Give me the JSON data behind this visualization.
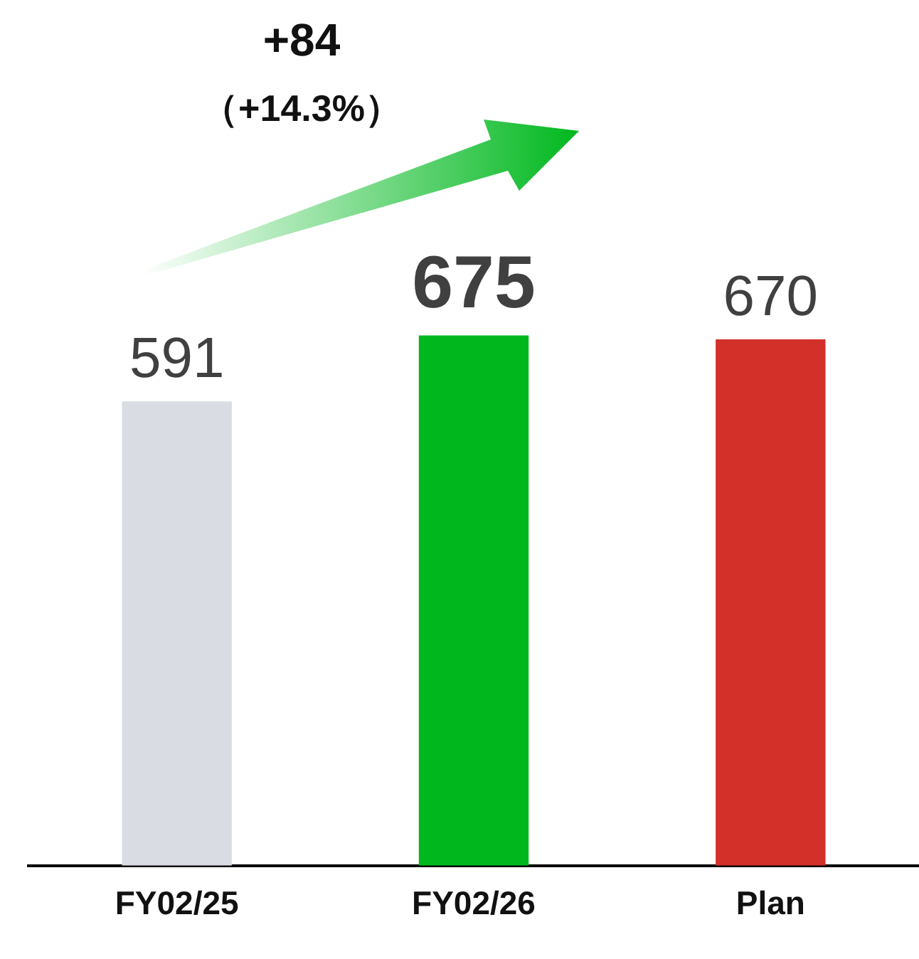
{
  "chart_data": {
    "type": "bar",
    "categories": [
      "FY02/25",
      "FY02/26",
      "Plan"
    ],
    "values": [
      591,
      675,
      670
    ],
    "colors": [
      "#d9dce3",
      "#00b81e",
      "#d3302a"
    ],
    "data_labels": true,
    "grid": false,
    "legend": false,
    "tick_labels": "x",
    "annotations": [
      "+84",
      "（+14.3%）"
    ]
  }
}
